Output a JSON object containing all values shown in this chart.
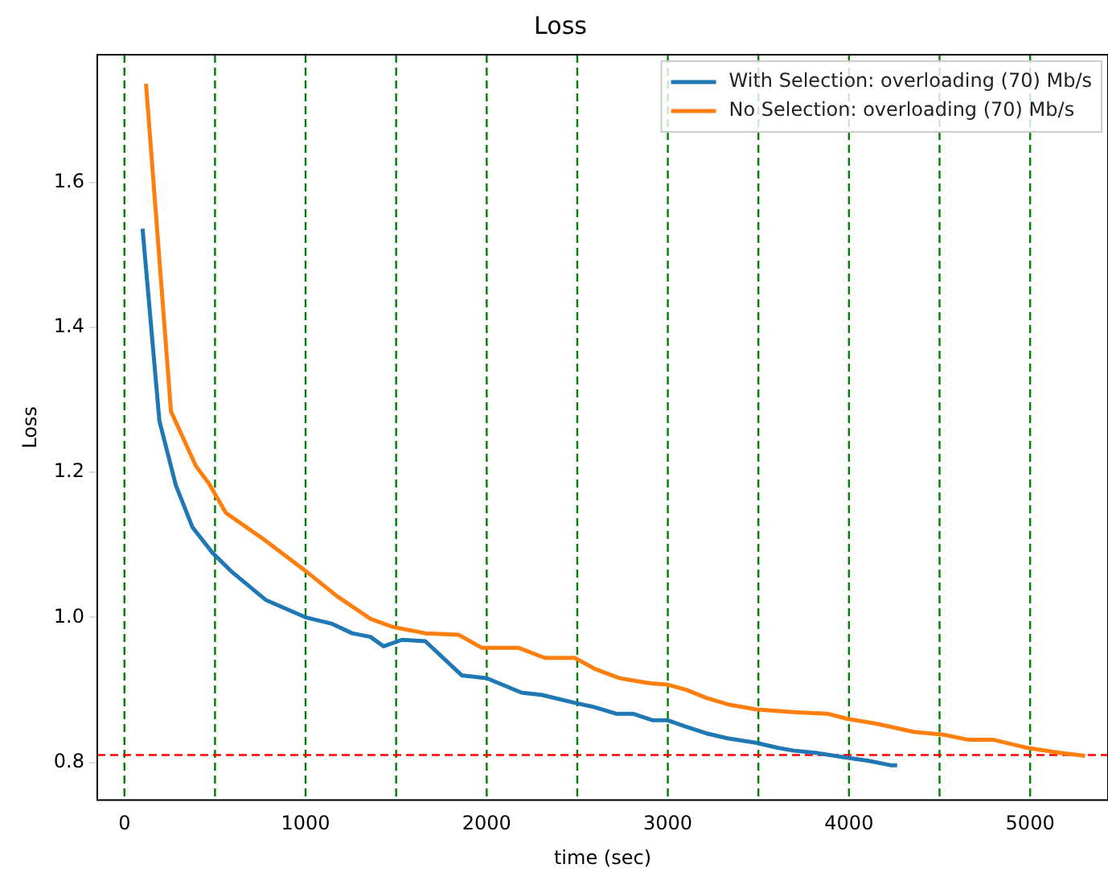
{
  "chart_data": {
    "type": "line",
    "title": "Loss",
    "xlabel": "time (sec)",
    "ylabel": "Loss",
    "xlim": [
      -150,
      5430
    ],
    "ylim": [
      0.748,
      1.776
    ],
    "xticks": [
      0,
      1000,
      2000,
      3000,
      4000,
      5000
    ],
    "yticks": [
      {
        "value": 0.8,
        "label": "0.8"
      },
      {
        "value": 1.0,
        "label": "1.0"
      },
      {
        "value": 1.2,
        "label": "1.2"
      },
      {
        "value": 1.4,
        "label": "1.4"
      },
      {
        "value": 1.6,
        "label": "1.6"
      }
    ],
    "grid": false,
    "legend": "top right",
    "marker": "none",
    "line_style": "solid",
    "series": [
      {
        "name": "With Selection: overloading (70) Mb/s",
        "color": "#1f77b4",
        "x": [
          100,
          193,
          284,
          376,
          486,
          596,
          780,
          1000,
          1147,
          1257,
          1358,
          1431,
          1532,
          1661,
          1862,
          2000,
          2193,
          2303,
          2486,
          2596,
          2716,
          2807,
          2917,
          3000,
          3101,
          3211,
          3330,
          3486,
          3606,
          3697,
          3817,
          3972,
          4110,
          4229,
          4266
        ],
        "values": [
          1.536,
          1.271,
          1.182,
          1.124,
          1.089,
          1.062,
          1.024,
          1.0,
          0.991,
          0.978,
          0.973,
          0.96,
          0.969,
          0.967,
          0.92,
          0.916,
          0.896,
          0.893,
          0.882,
          0.876,
          0.867,
          0.867,
          0.858,
          0.858,
          0.849,
          0.84,
          0.833,
          0.827,
          0.82,
          0.816,
          0.813,
          0.807,
          0.802,
          0.796,
          0.796
        ]
      },
      {
        "name": "No Selection: overloading (70) Mb/s",
        "color": "#ff7f0e",
        "x": [
          119,
          257,
          394,
          468,
          560,
          761,
          1000,
          1174,
          1358,
          1477,
          1661,
          1844,
          1972,
          2174,
          2321,
          2486,
          2596,
          2734,
          2899,
          3000,
          3101,
          3211,
          3330,
          3486,
          3697,
          3881,
          3991,
          4156,
          4358,
          4523,
          4661,
          4798,
          4982,
          5165,
          5303
        ],
        "values": [
          1.736,
          1.284,
          1.209,
          1.184,
          1.144,
          1.109,
          1.064,
          1.029,
          0.998,
          0.987,
          0.978,
          0.976,
          0.958,
          0.958,
          0.944,
          0.944,
          0.929,
          0.916,
          0.909,
          0.907,
          0.9,
          0.889,
          0.88,
          0.873,
          0.869,
          0.867,
          0.86,
          0.853,
          0.842,
          0.838,
          0.831,
          0.831,
          0.82,
          0.813,
          0.809
        ]
      }
    ],
    "ref_lines": [
      {
        "axis": "x",
        "value": 0,
        "color": "#008000",
        "line_style": "dashed"
      },
      {
        "axis": "x",
        "value": 500,
        "color": "#008000",
        "line_style": "dashed"
      },
      {
        "axis": "x",
        "value": 1000,
        "color": "#008000",
        "line_style": "dashed"
      },
      {
        "axis": "x",
        "value": 1500,
        "color": "#008000",
        "line_style": "dashed"
      },
      {
        "axis": "x",
        "value": 2000,
        "color": "#008000",
        "line_style": "dashed"
      },
      {
        "axis": "x",
        "value": 2500,
        "color": "#008000",
        "line_style": "dashed"
      },
      {
        "axis": "x",
        "value": 3000,
        "color": "#008000",
        "line_style": "dashed"
      },
      {
        "axis": "x",
        "value": 3500,
        "color": "#008000",
        "line_style": "dashed"
      },
      {
        "axis": "x",
        "value": 4000,
        "color": "#008000",
        "line_style": "dashed"
      },
      {
        "axis": "x",
        "value": 4500,
        "color": "#008000",
        "line_style": "dashed"
      },
      {
        "axis": "x",
        "value": 5000,
        "color": "#008000",
        "line_style": "dashed"
      },
      {
        "axis": "y",
        "value": 0.81,
        "color": "#ff0000",
        "line_style": "dashed"
      }
    ]
  }
}
